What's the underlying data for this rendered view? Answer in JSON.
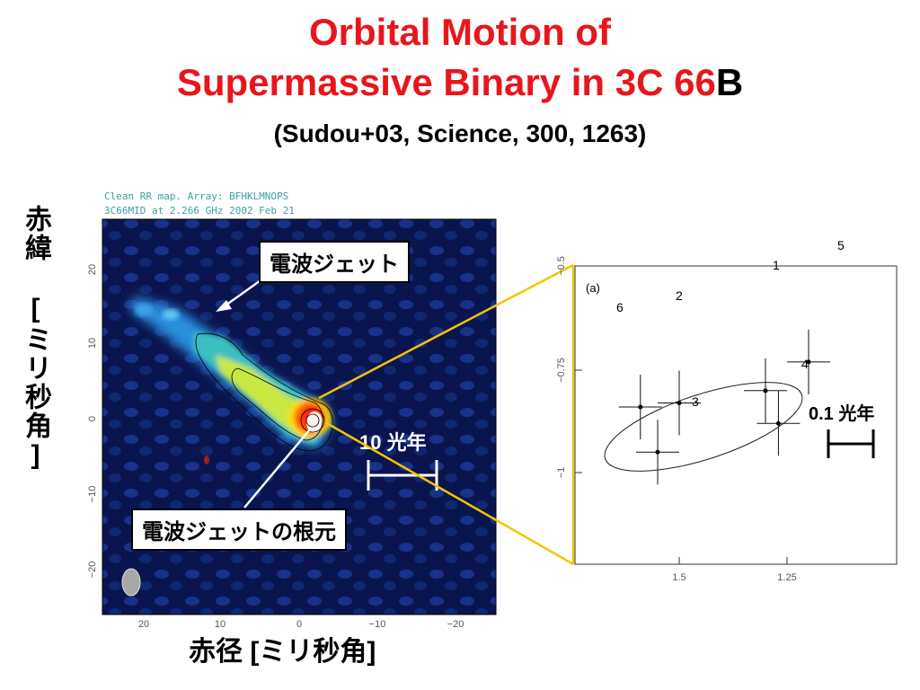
{
  "slide": {
    "title_line1": "Orbital Motion of",
    "title_line2_red": "Supermassive Binary in 3C 66",
    "title_line2_black": "B",
    "citation": "(Sudou+03, Science, 300, 1263)",
    "y_axis_label": "赤緯 [ミリ秒角]",
    "x_axis_label": "赤径 [ミリ秒角]",
    "callout_jet": "電波ジェット",
    "callout_root": "電波ジェットの根元",
    "scale_left": "10 光年",
    "scale_right": "0.1 光年"
  },
  "radio_map": {
    "header_line1": "Clean RR map.  Array:  BFHKLMNOPS",
    "header_line2": "3C66MID at 2.266 GHz 2002 Feb 21",
    "y_ticks": [
      "20",
      "10",
      "0",
      "−10",
      "−20"
    ],
    "x_ticks": [
      "20",
      "10",
      "0",
      "−10",
      "−20"
    ],
    "colors": {
      "background": "#0a1550",
      "core": "#ffffff",
      "inner": "#ff2010",
      "mid": "#ffe000",
      "outer": "#2aa0e0"
    }
  },
  "chart_data": {
    "type": "scatter",
    "panel_label": "(a)",
    "x_ticks": [
      "1.5",
      "1.25"
    ],
    "y_ticks": [
      "−0.5",
      "−0.75",
      "−1"
    ],
    "points": [
      {
        "label": "1",
        "x": 1.3,
        "y": -0.8
      },
      {
        "label": "2",
        "x": 1.55,
        "y": -0.95
      },
      {
        "label": "3",
        "x": 1.5,
        "y": -0.83
      },
      {
        "label": "4",
        "x": 1.2,
        "y": -0.73
      },
      {
        "label": "5",
        "x": 1.27,
        "y": -0.88
      },
      {
        "label": "6",
        "x": 1.59,
        "y": -0.84
      }
    ],
    "fit": "ellipse",
    "x_inverted": true
  },
  "colors": {
    "title_red": "#e8161c",
    "connector": "#f5c400"
  }
}
